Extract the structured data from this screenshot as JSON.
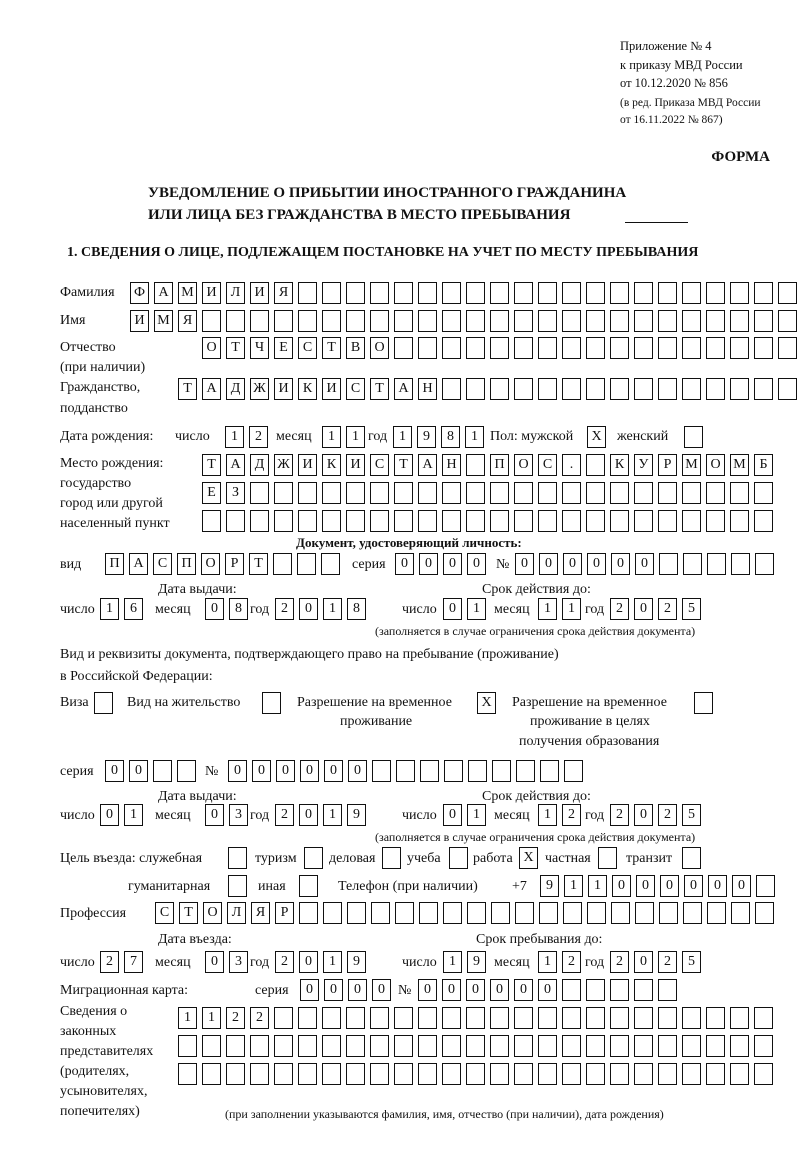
{
  "header": {
    "appendix": "Приложение № 4",
    "order": "к приказу МВД России",
    "order_date": "от 10.12.2020 № 856",
    "edition1": "(в ред. Приказа МВД России",
    "edition2": "от 16.11.2022 № 867)",
    "form_label": "ФОРМА",
    "title1": "УВЕДОМЛЕНИЕ О ПРИБЫТИИ ИНОСТРАННОГО ГРАЖДАНИНА",
    "title2": "ИЛИ ЛИЦА БЕЗ ГРАЖДАНСТВА В МЕСТО ПРЕБЫВАНИЯ",
    "section1": "1. СВЕДЕНИЯ О ЛИЦЕ, ПОДЛЕЖАЩЕМ ПОСТАНОВКЕ НА УЧЕТ ПО МЕСТУ ПРЕБЫВАНИЯ"
  },
  "labels": {
    "surname": "Фамилия",
    "name": "Имя",
    "patronymic": "Отчество",
    "patronymic2": "(при наличии)",
    "citizenship": "Гражданство,",
    "citizenship2": "подданство",
    "birth_date": "Дата рождения:",
    "day": "число",
    "month": "месяц",
    "year": "год",
    "sex": "Пол: мужской",
    "female": "женский",
    "birth_place": "Место рождения:",
    "state": "государство",
    "city": "город или другой",
    "settlement": "населенный пункт",
    "id_doc": "Документ, удостоверяющий личность:",
    "kind": "вид",
    "series": "серия",
    "number": "№",
    "issue_date": "Дата выдачи:",
    "valid_until": "Срок действия до:",
    "validity_note": "(заполняется в случае ограничения срока действия документа)",
    "residence_doc1": "Вид и реквизиты документа, подтверждающего право на пребывание (проживание)",
    "residence_doc2": "в Российской Федерации:",
    "visa": "Виза",
    "residence_permit": "Вид на жительство",
    "temp_permit1": "Разрешение на временное",
    "temp_permit2": "проживание",
    "edu_permit1": "Разрешение на временное",
    "edu_permit2": "проживание в целях",
    "edu_permit3": "получения образования",
    "purpose": "Цель въезда: служебная",
    "tourism": "туризм",
    "business": "деловая",
    "study": "учеба",
    "work": "работа",
    "private": "частная",
    "transit": "транзит",
    "humanitarian": "гуманитарная",
    "other": "иная",
    "phone": "Телефон (при наличии)",
    "phone_prefix": "+7",
    "profession": "Профессия",
    "entry_date": "Дата въезда:",
    "stay_until": "Срок пребывания до:",
    "migration_card": "Миграционная карта:",
    "reps1": "Сведения о",
    "reps2": "законных",
    "reps3": "представителях",
    "reps4": "(родителях,",
    "reps5": "усыновителях,",
    "reps6": "попечителях)",
    "reps_note": "(при заполнении указываются фамилия, имя, отчество (при наличии), дата рождения)"
  },
  "fields": {
    "surname": [
      "Ф",
      "А",
      "М",
      "И",
      "Л",
      "И",
      "Я",
      "",
      "",
      "",
      "",
      "",
      "",
      "",
      "",
      "",
      "",
      "",
      "",
      "",
      "",
      "",
      "",
      "",
      "",
      "",
      "",
      ""
    ],
    "name": [
      "И",
      "М",
      "Я",
      "",
      "",
      "",
      "",
      "",
      "",
      "",
      "",
      "",
      "",
      "",
      "",
      "",
      "",
      "",
      "",
      "",
      "",
      "",
      "",
      "",
      "",
      "",
      "",
      ""
    ],
    "patronymic": [
      "О",
      "Т",
      "Ч",
      "Е",
      "С",
      "Т",
      "В",
      "О",
      "",
      "",
      "",
      "",
      "",
      "",
      "",
      "",
      "",
      "",
      "",
      "",
      "",
      "",
      "",
      "",
      ""
    ],
    "citizenship": [
      "Т",
      "А",
      "Д",
      "Ж",
      "И",
      "К",
      "И",
      "С",
      "Т",
      "А",
      "Н",
      "",
      "",
      "",
      "",
      "",
      "",
      "",
      "",
      "",
      "",
      "",
      "",
      "",
      "",
      ""
    ],
    "birth_day": [
      "1",
      "2"
    ],
    "birth_month": [
      "1",
      "1"
    ],
    "birth_year": [
      "1",
      "9",
      "8",
      "1"
    ],
    "sex_male": "X",
    "sex_female": "",
    "birth_place_1": [
      "Т",
      "А",
      "Д",
      "Ж",
      "И",
      "К",
      "И",
      "С",
      "Т",
      "А",
      "Н",
      "",
      "П",
      "О",
      "С",
      ".",
      "",
      "К",
      "У",
      "Р",
      "М",
      "О",
      "М",
      "Б"
    ],
    "birth_place_2": [
      "Е",
      "З",
      "",
      "",
      "",
      "",
      "",
      "",
      "",
      "",
      "",
      "",
      "",
      "",
      "",
      "",
      "",
      "",
      "",
      "",
      "",
      "",
      "",
      ""
    ],
    "birth_place_3": [
      "",
      "",
      "",
      "",
      "",
      "",
      "",
      "",
      "",
      "",
      "",
      "",
      "",
      "",
      "",
      "",
      "",
      "",
      "",
      "",
      "",
      "",
      "",
      ""
    ],
    "id_kind": [
      "П",
      "А",
      "С",
      "П",
      "О",
      "Р",
      "Т",
      "",
      "",
      ""
    ],
    "id_series": [
      "0",
      "0",
      "0",
      "0"
    ],
    "id_number": [
      "0",
      "0",
      "0",
      "0",
      "0",
      "0",
      "",
      "",
      "",
      "",
      ""
    ],
    "id_issue_day": [
      "1",
      "6"
    ],
    "id_issue_month": [
      "0",
      "8"
    ],
    "id_issue_year": [
      "2",
      "0",
      "1",
      "8"
    ],
    "id_valid_day": [
      "0",
      "1"
    ],
    "id_valid_month": [
      "1",
      "1"
    ],
    "id_valid_year": [
      "2",
      "0",
      "2",
      "5"
    ],
    "doc_visa": "",
    "doc_residence_permit": "",
    "doc_temp_permit": "X",
    "doc_edu_permit": "",
    "res_series": [
      "0",
      "0",
      "",
      ""
    ],
    "res_number": [
      "0",
      "0",
      "0",
      "0",
      "0",
      "0",
      "",
      "",
      "",
      "",
      "",
      "",
      "",
      "",
      ""
    ],
    "res_issue_day": [
      "0",
      "1"
    ],
    "res_issue_month": [
      "0",
      "3"
    ],
    "res_issue_year": [
      "2",
      "0",
      "1",
      "9"
    ],
    "res_valid_day": [
      "0",
      "1"
    ],
    "res_valid_month": [
      "1",
      "2"
    ],
    "res_valid_year": [
      "2",
      "0",
      "2",
      "5"
    ],
    "purpose_service": "",
    "purpose_tourism": "",
    "purpose_business": "",
    "purpose_study": "",
    "purpose_work": "X",
    "purpose_private": "",
    "purpose_transit": "",
    "purpose_humanitarian": "",
    "purpose_other": "",
    "phone": [
      "9",
      "1",
      "1",
      "0",
      "0",
      "0",
      "0",
      "0",
      "0",
      ""
    ],
    "profession": [
      "С",
      "Т",
      "О",
      "Л",
      "Я",
      "Р",
      "",
      "",
      "",
      "",
      "",
      "",
      "",
      "",
      "",
      "",
      "",
      "",
      "",
      "",
      "",
      "",
      "",
      "",
      "",
      ""
    ],
    "entry_day": [
      "2",
      "7"
    ],
    "entry_month": [
      "0",
      "3"
    ],
    "entry_year": [
      "2",
      "0",
      "1",
      "9"
    ],
    "stay_day": [
      "1",
      "9"
    ],
    "stay_month": [
      "1",
      "2"
    ],
    "stay_year": [
      "2",
      "0",
      "2",
      "5"
    ],
    "mig_series": [
      "0",
      "0",
      "0",
      "0"
    ],
    "mig_number": [
      "0",
      "0",
      "0",
      "0",
      "0",
      "0",
      "",
      "",
      "",
      "",
      ""
    ],
    "reps_1": [
      "1",
      "1",
      "2",
      "2",
      "",
      "",
      "",
      "",
      "",
      "",
      "",
      "",
      "",
      "",
      "",
      "",
      "",
      "",
      "",
      "",
      "",
      "",
      "",
      "",
      ""
    ],
    "reps_2": [
      "",
      "",
      "",
      "",
      "",
      "",
      "",
      "",
      "",
      "",
      "",
      "",
      "",
      "",
      "",
      "",
      "",
      "",
      "",
      "",
      "",
      "",
      "",
      "",
      ""
    ],
    "reps_3": [
      "",
      "",
      "",
      "",
      "",
      "",
      "",
      "",
      "",
      "",
      "",
      "",
      "",
      "",
      "",
      "",
      "",
      "",
      "",
      "",
      "",
      "",
      "",
      "",
      ""
    ]
  }
}
